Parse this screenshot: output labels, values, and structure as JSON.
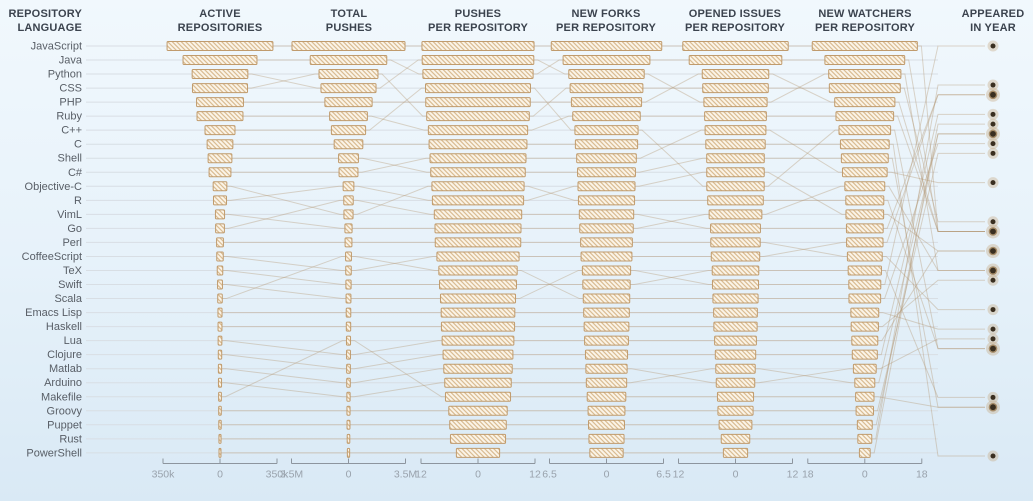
{
  "columns": [
    {
      "id": "repository-language",
      "line1": "REPOSITORY",
      "line2": "LANGUAGE"
    },
    {
      "id": "active-repositories",
      "line1": "ACTIVE",
      "line2": "REPOSITORIES"
    },
    {
      "id": "total-pushes",
      "line1": "TOTAL",
      "line2": "PUSHES"
    },
    {
      "id": "pushes-per-repository",
      "line1": "PUSHES",
      "line2": "PER REPOSITORY"
    },
    {
      "id": "new-forks-per-repository",
      "line1": "NEW FORKS",
      "line2": "PER REPOSITORY"
    },
    {
      "id": "opened-issues-per-repository",
      "line1": "OPENED ISSUES",
      "line2": "PER REPOSITORY"
    },
    {
      "id": "new-watchers-per-repository",
      "line1": "NEW WATCHERS",
      "line2": "PER REPOSITORY"
    },
    {
      "id": "appeared-in-year",
      "line1": "APPEARED",
      "line2": "IN YEAR"
    }
  ],
  "chart_data": {
    "type": "bar",
    "variant": "parallel-ranked-bar-columns",
    "description": "Each metric column shows mirrored bars ranked descending; lines trace each language's rank across columns; right column dots mark year the language appeared (2014 top to 1972 bottom).",
    "axes": [
      {
        "metric": "active_repositories",
        "max": 350000,
        "ticks": [
          "350k",
          "0",
          "350k"
        ]
      },
      {
        "metric": "total_pushes",
        "max": 3500000,
        "ticks": [
          "3.5M",
          "0",
          "3.5M"
        ]
      },
      {
        "metric": "pushes_per_repository",
        "max": 12,
        "ticks": [
          "12",
          "0",
          "12"
        ]
      },
      {
        "metric": "new_forks_per_repository",
        "max": 6.5,
        "ticks": [
          "6.5",
          "0",
          "6.5"
        ]
      },
      {
        "metric": "opened_issues_per_repository",
        "max": 12,
        "ticks": [
          "12",
          "0",
          "12"
        ]
      },
      {
        "metric": "new_watchers_per_repository",
        "max": 18,
        "ticks": [
          "18",
          "0",
          "18"
        ]
      }
    ],
    "year_axis": {
      "top_year": 2014,
      "bottom_year": 1972
    },
    "languages": [
      {
        "name": "JavaScript",
        "active_repositories": 325000,
        "total_pushes": 3470000,
        "pushes_per_repository": 11.8,
        "new_forks_per_repository": 6.3,
        "opened_issues_per_repository": 11.1,
        "new_watchers_per_repository": 16.6,
        "appeared_in_year": 1995
      },
      {
        "name": "Java",
        "active_repositories": 227000,
        "total_pushes": 2350000,
        "pushes_per_repository": 11.6,
        "new_forks_per_repository": 4.95,
        "opened_issues_per_repository": 9.75,
        "new_watchers_per_repository": 12.6,
        "appeared_in_year": 1995
      },
      {
        "name": "Python",
        "active_repositories": 171000,
        "total_pushes": 1690000,
        "pushes_per_repository": 11.75,
        "new_forks_per_repository": 4.3,
        "opened_issues_per_repository": 6.65,
        "new_watchers_per_repository": 11.4,
        "appeared_in_year": 1991
      },
      {
        "name": "CSS",
        "active_repositories": 169000,
        "total_pushes": 1810000,
        "pushes_per_repository": 10.8,
        "new_forks_per_repository": 4.15,
        "opened_issues_per_repository": 6.9,
        "new_watchers_per_repository": 11.2,
        "appeared_in_year": 1996
      },
      {
        "name": "PHP",
        "active_repositories": 144000,
        "total_pushes": 1450000,
        "pushes_per_repository": 11.0,
        "new_forks_per_repository": 4.0,
        "opened_issues_per_repository": 7.0,
        "new_watchers_per_repository": 9.5,
        "appeared_in_year": 1995
      },
      {
        "name": "Ruby",
        "active_repositories": 141000,
        "total_pushes": 1160000,
        "pushes_per_repository": 10.45,
        "new_forks_per_repository": 3.85,
        "opened_issues_per_repository": 6.5,
        "new_watchers_per_repository": 9.1,
        "appeared_in_year": 1995
      },
      {
        "name": "C++",
        "active_repositories": 92000,
        "total_pushes": 1050000,
        "pushes_per_repository": 11.05,
        "new_forks_per_repository": 3.6,
        "opened_issues_per_repository": 6.04,
        "new_watchers_per_repository": 8.15,
        "appeared_in_year": 1983
      },
      {
        "name": "C",
        "active_repositories": 79000,
        "total_pushes": 880000,
        "pushes_per_repository": 10.3,
        "new_forks_per_repository": 3.55,
        "opened_issues_per_repository": 6.25,
        "new_watchers_per_repository": 7.7,
        "appeared_in_year": 1972
      },
      {
        "name": "Shell",
        "active_repositories": 73000,
        "total_pushes": 610000,
        "pushes_per_repository": 9.95,
        "new_forks_per_repository": 3.3,
        "opened_issues_per_repository": 6.06,
        "new_watchers_per_repository": 7.4,
        "appeared_in_year": 1977
      },
      {
        "name": "C#",
        "active_repositories": 67000,
        "total_pushes": 580000,
        "pushes_per_repository": 10.1,
        "new_forks_per_repository": 3.4,
        "opened_issues_per_repository": 6.4,
        "new_watchers_per_repository": 7.05,
        "appeared_in_year": 2000
      },
      {
        "name": "Objective-C",
        "active_repositories": 42000,
        "total_pushes": 280000,
        "pushes_per_repository": 9.7,
        "new_forks_per_repository": 3.2,
        "opened_issues_per_repository": 5.85,
        "new_watchers_per_repository": 6.0,
        "appeared_in_year": 1983
      },
      {
        "name": "R",
        "active_repositories": 40000,
        "total_pushes": 330000,
        "pushes_per_repository": 9.6,
        "new_forks_per_repository": 3.25,
        "opened_issues_per_repository": 6.05,
        "new_watchers_per_repository": 5.95,
        "appeared_in_year": 1993
      },
      {
        "name": "VimL",
        "active_repositories": 28000,
        "total_pushes": 220000,
        "pushes_per_repository": 9.05,
        "new_forks_per_repository": 3.05,
        "opened_issues_per_repository": 5.55,
        "new_watchers_per_repository": 6.3,
        "appeared_in_year": 1991
      },
      {
        "name": "Go",
        "active_repositories": 27000,
        "total_pushes": 290000,
        "pushes_per_repository": 9.2,
        "new_forks_per_repository": 3.1,
        "opened_issues_per_repository": 5.25,
        "new_watchers_per_repository": 5.8,
        "appeared_in_year": 2009
      },
      {
        "name": "Perl",
        "active_repositories": 21000,
        "total_pushes": 210000,
        "pushes_per_repository": 9.0,
        "new_forks_per_repository": 2.95,
        "opened_issues_per_repository": 5.2,
        "new_watchers_per_repository": 5.5,
        "appeared_in_year": 1987
      },
      {
        "name": "CoffeeScript",
        "active_repositories": 20000,
        "total_pushes": 170000,
        "pushes_per_repository": 8.65,
        "new_forks_per_repository": 2.9,
        "opened_issues_per_repository": 5.1,
        "new_watchers_per_repository": 5.75,
        "appeared_in_year": 2009
      },
      {
        "name": "TeX",
        "active_repositories": 17000,
        "total_pushes": 160000,
        "pushes_per_repository": 8.1,
        "new_forks_per_repository": 2.7,
        "opened_issues_per_repository": 4.9,
        "new_watchers_per_repository": 5.25,
        "appeared_in_year": 1978
      },
      {
        "name": "Swift",
        "active_repositories": 15000,
        "total_pushes": 150000,
        "pushes_per_repository": 7.9,
        "new_forks_per_repository": 2.75,
        "opened_issues_per_repository": 4.85,
        "new_watchers_per_repository": 5.05,
        "appeared_in_year": 2014
      },
      {
        "name": "Scala",
        "active_repositories": 14000,
        "total_pushes": 180000,
        "pushes_per_repository": 8.25,
        "new_forks_per_repository": 2.65,
        "opened_issues_per_repository": 4.75,
        "new_watchers_per_repository": 5.0,
        "appeared_in_year": 2004
      },
      {
        "name": "Emacs Lisp",
        "active_repositories": 12500,
        "total_pushes": 140000,
        "pushes_per_repository": 7.75,
        "new_forks_per_repository": 2.6,
        "opened_issues_per_repository": 4.6,
        "new_watchers_per_repository": 4.4,
        "appeared_in_year": 1985
      },
      {
        "name": "Haskell",
        "active_repositories": 12000,
        "total_pushes": 135000,
        "pushes_per_repository": 7.7,
        "new_forks_per_repository": 2.55,
        "opened_issues_per_repository": 4.55,
        "new_watchers_per_repository": 4.3,
        "appeared_in_year": 1990
      },
      {
        "name": "Lua",
        "active_repositories": 11500,
        "total_pushes": 120000,
        "pushes_per_repository": 7.55,
        "new_forks_per_repository": 2.5,
        "opened_issues_per_repository": 4.4,
        "new_watchers_per_repository": 4.1,
        "appeared_in_year": 1993
      },
      {
        "name": "Clojure",
        "active_repositories": 10500,
        "total_pushes": 115000,
        "pushes_per_repository": 7.35,
        "new_forks_per_repository": 2.4,
        "opened_issues_per_repository": 4.25,
        "new_watchers_per_repository": 3.95,
        "appeared_in_year": 2007
      },
      {
        "name": "Matlab",
        "active_repositories": 10000,
        "total_pushes": 110000,
        "pushes_per_repository": 7.2,
        "new_forks_per_repository": 2.35,
        "opened_issues_per_repository": 4.05,
        "new_watchers_per_repository": 3.6,
        "appeared_in_year": 1984
      },
      {
        "name": "Arduino",
        "active_repositories": 9500,
        "total_pushes": 100000,
        "pushes_per_repository": 7.0,
        "new_forks_per_repository": 2.3,
        "opened_issues_per_repository": 4.15,
        "new_watchers_per_repository": 3.15,
        "appeared_in_year": 2005
      },
      {
        "name": "Makefile",
        "active_repositories": 8500,
        "total_pushes": 125000,
        "pushes_per_repository": 6.85,
        "new_forks_per_repository": 2.2,
        "opened_issues_per_repository": 3.8,
        "new_watchers_per_repository": 2.9,
        "appeared_in_year": 1977
      },
      {
        "name": "Groovy",
        "active_repositories": 8000,
        "total_pushes": 95000,
        "pushes_per_repository": 6.15,
        "new_forks_per_repository": 2.1,
        "opened_issues_per_repository": 3.7,
        "new_watchers_per_repository": 2.75,
        "appeared_in_year": 2003
      },
      {
        "name": "Puppet",
        "active_repositories": 7500,
        "total_pushes": 90000,
        "pushes_per_repository": 5.95,
        "new_forks_per_repository": 2.05,
        "opened_issues_per_repository": 3.45,
        "new_watchers_per_repository": 2.35,
        "appeared_in_year": 2005
      },
      {
        "name": "Rust",
        "active_repositories": 6500,
        "total_pushes": 80000,
        "pushes_per_repository": 5.8,
        "new_forks_per_repository": 2.0,
        "opened_issues_per_repository": 3.0,
        "new_watchers_per_repository": 2.2,
        "appeared_in_year": 2010
      },
      {
        "name": "PowerShell",
        "active_repositories": 6000,
        "total_pushes": 70000,
        "pushes_per_repository": 4.55,
        "new_forks_per_repository": 1.9,
        "opened_issues_per_repository": 2.55,
        "new_watchers_per_repository": 1.7,
        "appeared_in_year": 2006
      }
    ]
  },
  "colors": {
    "background_top": "#f1f8fd",
    "background_bottom": "#d9e9f5",
    "bar_fill": "#fbf4e7",
    "bar_hatch": "#d9bc93",
    "bar_border": "#c09b6d",
    "link": "#b49670",
    "row_guide": "#d8dee4",
    "header_text": "#3b434e",
    "label_text": "#585e66",
    "axis_line": "#8d959e",
    "axis_text": "#99a2ac",
    "dot_center": "#3a2f20",
    "dot_ring": "#c4a880",
    "dot_mid": "#9a7b50"
  }
}
